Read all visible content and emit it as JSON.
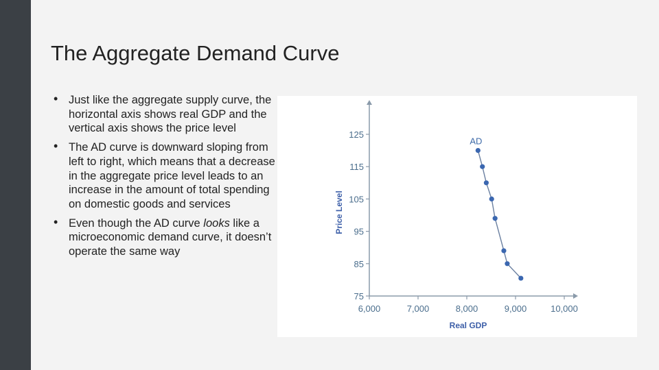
{
  "slide": {
    "title": "The Aggregate Demand Curve",
    "bullets": [
      {
        "text": "Just like the aggregate supply curve, the horizontal axis shows real GDP and the vertical axis shows the price level"
      },
      {
        "text": "The AD curve is downward sloping from left to right, which means that a decrease in the aggregate price level leads to an increase in the amount of total spending on domestic goods and services"
      },
      {
        "before": "Even though the AD curve ",
        "emph": "looks",
        "after": " like a microeconomic demand curve, it doesn’t operate the same way"
      }
    ]
  },
  "colors": {
    "sidebar": "#3b4045",
    "axis": "#8a9aaa",
    "curve": "#6a7fa0",
    "point": "#3b67b0",
    "tick_text": "#4a6d8c",
    "axis_title": "#3d5fa8"
  },
  "chart_data": {
    "type": "scatter",
    "xlabel": "Real GDP",
    "ylabel": "Price Level",
    "xlim": [
      6000,
      10000
    ],
    "ylim": [
      75,
      125
    ],
    "x_ticks": [
      "6,000",
      "7,000",
      "8,000",
      "9,000",
      "10,000"
    ],
    "y_ticks": [
      "75",
      "85",
      "95",
      "105",
      "115",
      "125"
    ],
    "grid": false,
    "series": [
      {
        "name": "AD",
        "points": [
          {
            "x": 8230,
            "y": 120
          },
          {
            "x": 8320,
            "y": 115
          },
          {
            "x": 8400,
            "y": 110
          },
          {
            "x": 8510,
            "y": 105
          },
          {
            "x": 8580,
            "y": 99
          },
          {
            "x": 8760,
            "y": 89
          },
          {
            "x": 8830,
            "y": 85
          },
          {
            "x": 9110,
            "y": 80.5
          }
        ]
      }
    ]
  }
}
